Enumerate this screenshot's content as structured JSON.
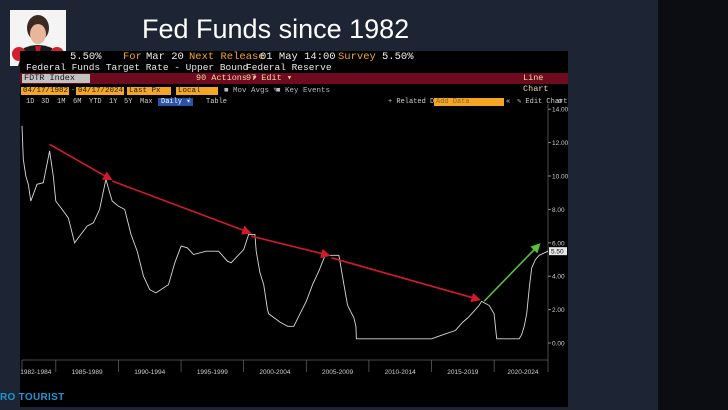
{
  "slide": {
    "title": "Fed Funds since 1982",
    "brand": "RO TOURIST",
    "colors": {
      "background": "#1d2433",
      "terminal_amber": "#f5a623",
      "header_red": "#6e0b1e",
      "trend_red": "#d31a2a",
      "trend_green": "#57c23c"
    }
  },
  "quote_bar": {
    "price": "5.50%",
    "for_label": "For",
    "for_date": "Mar 20",
    "next_release_label": "Next Release",
    "next_release": "01 May 14:00",
    "survey_label": "Survey",
    "survey": "5.50%"
  },
  "security": {
    "description": "Federal Funds Target Rate - Upper Bound",
    "source": "Federal Reserve"
  },
  "function_bar": {
    "ticker": "FDTR Index",
    "actions": "90 Actions",
    "edit": "97 Edit",
    "chart_type": "Line Chart"
  },
  "controls": {
    "start_date": "04/17/1982",
    "end_date": "04/17/2024",
    "field": "Last Px",
    "currency": "Local CCY",
    "mov_avgs": "Mov Avgs",
    "key_events": "Key Events",
    "periods": [
      "1D",
      "3D",
      "1M",
      "6M",
      "YTD",
      "1Y",
      "5Y",
      "Max"
    ],
    "frequency": "Daily",
    "table": "Table",
    "related_data": "+ Related Dat",
    "add_data_placeholder": "Add Data",
    "edit_chart": "Edit Chart"
  },
  "chart_data": {
    "type": "line",
    "title": "",
    "xlabel": "",
    "ylabel": "",
    "ylim": [
      -1,
      14
    ],
    "y_ticks": [
      0,
      2,
      4,
      6,
      8,
      10,
      12,
      14
    ],
    "y_tick_labels": [
      "0.00",
      "2.00",
      "4.00",
      "6.00",
      "8.00",
      "10.00",
      "12.00",
      "14.00"
    ],
    "x_range": [
      1982.3,
      2024.3
    ],
    "x_period_labels": [
      {
        "label": "1982-1984",
        "center": 1983.4
      },
      {
        "label": "1985-1989",
        "center": 1987.5
      },
      {
        "label": "1990-1994",
        "center": 1992.5
      },
      {
        "label": "1995-1999",
        "center": 1997.5
      },
      {
        "label": "2000-2004",
        "center": 2002.5
      },
      {
        "label": "2005-2009",
        "center": 2007.5
      },
      {
        "label": "2010-2014",
        "center": 2012.5
      },
      {
        "label": "2015-2019",
        "center": 2017.5
      },
      {
        "label": "2020-2024",
        "center": 2022.3
      }
    ],
    "last_value_label": "5.50",
    "last_value": 5.5,
    "series": [
      {
        "x": [
          1982.3,
          1982.4,
          1982.6,
          1982.8,
          1983.0,
          1983.5,
          1984.0,
          1984.5,
          1984.8,
          1985.0,
          1985.5,
          1986.0,
          1986.5,
          1987.0,
          1987.5,
          1988.0,
          1988.5,
          1989.0,
          1989.3,
          1989.5,
          1990.0,
          1990.5,
          1991.0,
          1991.5,
          1992.0,
          1992.5,
          1993.0,
          1994.0,
          1994.5,
          1995.0,
          1995.5,
          1996.0,
          1997.0,
          1998.0,
          1998.7,
          1999.0,
          1999.5,
          2000.0,
          2000.4,
          2000.9,
          2001.0,
          2001.3,
          2001.6,
          2001.9,
          2002.0,
          2002.9,
          2003.5,
          2004.0,
          2004.5,
          2005.0,
          2005.5,
          2006.0,
          2006.5,
          2007.0,
          2007.6,
          2008.0,
          2008.3,
          2008.8,
          2008.96,
          2009.0,
          2015.0,
          2015.95,
          2016.9,
          2017.2,
          2017.5,
          2017.9,
          2018.2,
          2018.5,
          2018.8,
          2019.0,
          2019.6,
          2019.8,
          2020.0,
          2020.2,
          2022.0,
          2022.2,
          2022.4,
          2022.6,
          2022.8,
          2023.0,
          2023.3,
          2023.6,
          2024.3
        ],
        "y": [
          13.0,
          11.0,
          10.0,
          9.5,
          8.5,
          9.5,
          9.6,
          11.5,
          10.0,
          8.5,
          8.0,
          7.5,
          6.0,
          6.5,
          7.0,
          7.2,
          8.0,
          9.8,
          9.0,
          8.5,
          8.2,
          8.0,
          6.5,
          5.5,
          4.0,
          3.2,
          3.0,
          3.5,
          4.8,
          5.8,
          5.7,
          5.3,
          5.5,
          5.5,
          4.9,
          4.8,
          5.2,
          5.6,
          6.5,
          6.5,
          5.5,
          4.2,
          3.5,
          2.0,
          1.75,
          1.25,
          1.0,
          1.0,
          1.75,
          2.5,
          3.5,
          4.3,
          5.25,
          5.25,
          5.25,
          3.5,
          2.25,
          1.5,
          1.0,
          0.25,
          0.25,
          0.5,
          0.75,
          1.0,
          1.25,
          1.5,
          1.75,
          2.0,
          2.25,
          2.5,
          2.25,
          2.0,
          1.75,
          0.25,
          0.25,
          0.5,
          1.0,
          1.75,
          3.25,
          4.5,
          5.0,
          5.25,
          5.5
        ]
      }
    ],
    "annotations": [
      {
        "type": "arrow",
        "color": "red",
        "from": [
          1984.5,
          11.9
        ],
        "to": [
          1989.4,
          9.8
        ]
      },
      {
        "type": "arrow",
        "color": "red",
        "from": [
          1989.5,
          9.7
        ],
        "to": [
          2000.5,
          6.6
        ]
      },
      {
        "type": "arrow",
        "color": "red",
        "from": [
          2000.6,
          6.4
        ],
        "to": [
          2006.8,
          5.25
        ]
      },
      {
        "type": "arrow",
        "color": "red",
        "from": [
          2007.0,
          5.1
        ],
        "to": [
          2018.8,
          2.6
        ]
      },
      {
        "type": "arrow",
        "color": "green",
        "from": [
          2019.2,
          2.5
        ],
        "to": [
          2023.6,
          5.9
        ]
      }
    ]
  }
}
